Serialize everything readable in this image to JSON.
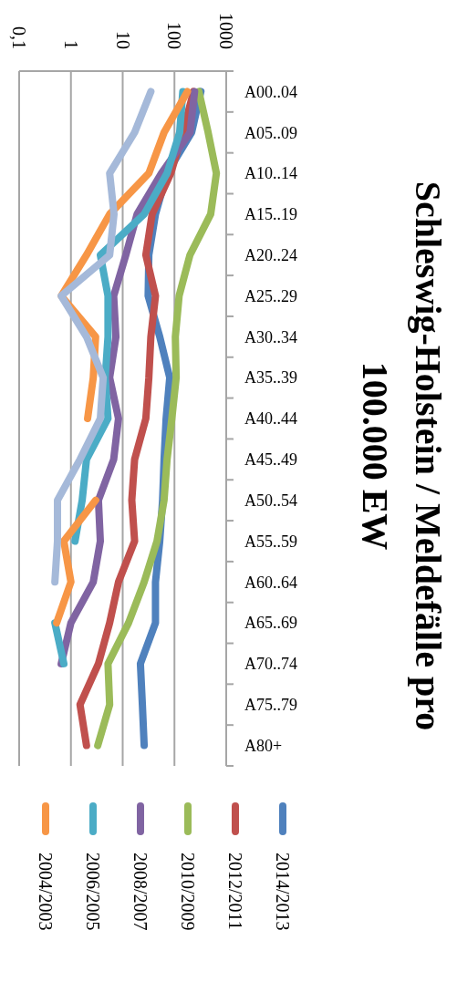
{
  "chart_data": {
    "type": "line",
    "title": "Schleswig-Holstein / Meldefälle pro 100.000 EW",
    "categories": [
      "A00..04",
      "A05..09",
      "A10..14",
      "A15..19",
      "A20..24",
      "A25..29",
      "A30..34",
      "A35..39",
      "A40..44",
      "A45..49",
      "A50..54",
      "A55..59",
      "A60..64",
      "A65..69",
      "A70..74",
      "A75..79",
      "A80+"
    ],
    "orientation": "horizontal",
    "log": "x",
    "xlim": [
      0.1,
      1000
    ],
    "xticks": [
      {
        "value": 0.1,
        "label": "0,1"
      },
      1,
      10,
      100,
      1000
    ],
    "grid": "x",
    "legend": "right",
    "marker": "none",
    "line_style": "solid",
    "series": [
      {
        "name": "2014/2013",
        "color": "#4f81bd",
        "values": [
          324,
          215,
          72,
          43,
          32,
          31,
          52,
          81,
          69,
          63,
          59,
          52,
          43,
          43,
          22,
          24,
          26
        ]
      },
      {
        "name": "2012/2011",
        "color": "#c0504d",
        "values": [
          234,
          145,
          85,
          37,
          28,
          43,
          35,
          32,
          28,
          17,
          15,
          17,
          8.3,
          5.6,
          3.4,
          1.5,
          2.0
        ]
      },
      {
        "name": "2010/2009",
        "color": "#9bbb59",
        "values": [
          296,
          447,
          646,
          501,
          199,
          123,
          104,
          108,
          89,
          72,
          63,
          46,
          26,
          13,
          5.2,
          5.6,
          3.3
        ]
      },
      {
        "name": "2008/2007",
        "color": "#8064a2",
        "values": [
          245,
          200,
          56,
          19,
          11.5,
          6.7,
          7.4,
          5.6,
          8.3,
          6.7,
          3.4,
          3.7,
          2.7,
          1.0,
          0.65,
          null,
          null
        ]
      },
      {
        "name": "2006/2005",
        "color": "#4bacc6",
        "values": [
          145,
          126,
          72,
          26,
          3.7,
          5.2,
          5.2,
          4.6,
          5.2,
          2.0,
          1.65,
          1.2,
          null,
          0.49,
          0.73,
          null,
          null
        ]
      },
      {
        "name": "2004/2003",
        "color": "#f79646",
        "values": [
          178,
          63,
          32,
          5.6,
          2.0,
          0.65,
          3.0,
          2.7,
          2.1,
          null,
          3.0,
          0.73,
          1.0,
          0.53,
          null,
          null,
          null
        ]
      },
      {
        "color": "#a5b9d9",
        "values": [
          35,
          17,
          5.6,
          6.8,
          5.6,
          0.65,
          2.0,
          4.2,
          3.7,
          1.5,
          0.55,
          0.55,
          0.49,
          null,
          null,
          null,
          null
        ]
      }
    ]
  }
}
